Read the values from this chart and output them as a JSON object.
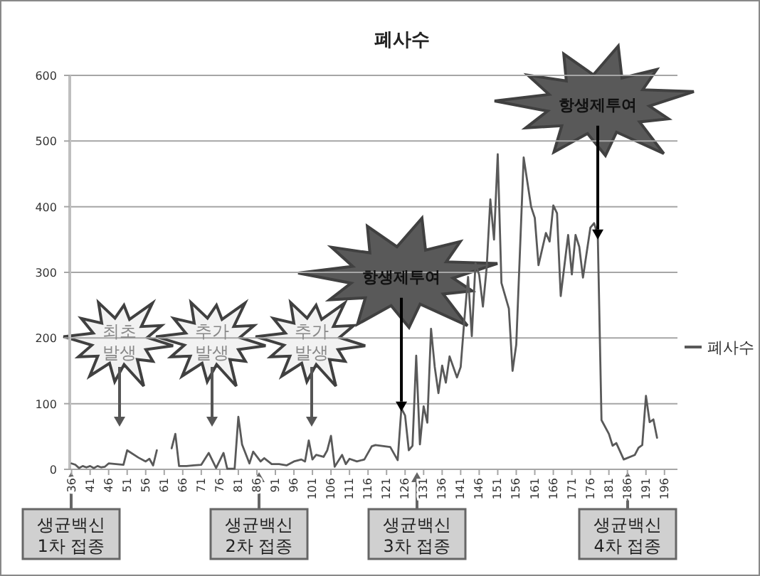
{
  "chart_data": {
    "type": "line",
    "title": "폐사수",
    "x": [
      36,
      37,
      38,
      39,
      40,
      41,
      42,
      43,
      44,
      45,
      46,
      48,
      50,
      51,
      54,
      56,
      57,
      58,
      59,
      61,
      63,
      64,
      65,
      67,
      69,
      71,
      73,
      75,
      77,
      78,
      80,
      81,
      82,
      84,
      85,
      87,
      88,
      90,
      92,
      94,
      96,
      98,
      99,
      100,
      101,
      102,
      104,
      105,
      106,
      107,
      109,
      110,
      111,
      113,
      115,
      117,
      118,
      122,
      124,
      125,
      126,
      127,
      128,
      129,
      130,
      131,
      132,
      133,
      134,
      135,
      136,
      137,
      138,
      140,
      141,
      142,
      143,
      144,
      145,
      146,
      147,
      148,
      149,
      150,
      151,
      152,
      154,
      155,
      156,
      158,
      160,
      161,
      162,
      164,
      165,
      166,
      167,
      168,
      170,
      171,
      172,
      173,
      174,
      176,
      177,
      178,
      179,
      181,
      182,
      183,
      185,
      188,
      189,
      190,
      191,
      192,
      193,
      194
    ],
    "series": [
      {
        "name": "폐사수",
        "color": "#595959",
        "values": [
          9,
          7,
          2,
          5,
          3,
          5,
          2,
          5,
          3,
          4,
          9,
          8,
          7,
          29,
          18,
          12,
          16,
          6,
          29,
          null,
          32,
          54,
          5,
          5,
          6,
          7,
          25,
          2,
          25,
          1,
          1,
          80,
          38,
          9,
          27,
          12,
          17,
          8,
          8,
          6,
          12,
          15,
          12,
          44,
          15,
          22,
          19,
          29,
          51,
          4,
          22,
          8,
          16,
          12,
          15,
          35,
          37,
          34,
          14,
          93,
          82,
          29,
          36,
          173,
          38,
          96,
          71,
          214,
          156,
          116,
          158,
          132,
          172,
          140,
          156,
          228,
          293,
          203,
          314,
          296,
          248,
          306,
          411,
          350,
          480,
          284,
          245,
          150,
          190,
          475,
          400,
          383,
          311,
          360,
          347,
          402,
          390,
          264,
          357,
          297,
          357,
          339,
          292,
          368,
          375,
          357,
          75,
          54,
          36,
          40,
          15,
          22,
          33,
          37,
          112,
          72,
          76,
          48
        ]
      }
    ],
    "xlim": [
      35.5,
      199.5
    ],
    "xticks": [
      36,
      41,
      46,
      51,
      56,
      61,
      66,
      71,
      76,
      81,
      86,
      91,
      96,
      101,
      106,
      111,
      116,
      121,
      126,
      131,
      136,
      141,
      146,
      151,
      156,
      161,
      166,
      171,
      176,
      181,
      186,
      191,
      196
    ],
    "ylim": [
      0,
      600
    ],
    "yticks": [
      0,
      100,
      200,
      300,
      400,
      500,
      600
    ],
    "grid": "y",
    "legend": "right",
    "marker": "none",
    "line_style": "solid",
    "annotations": [
      "최초 발생",
      "추가 발생",
      "추가 발생",
      {
        "text": "항생제투여",
        "x": 125,
        "y": 88
      },
      {
        "text": "항생제투여",
        "x": 178,
        "y": 350
      },
      "생균백신 1차 접종",
      "생균백신 2차 접종",
      "생균백신 3차 접종",
      "생균백신 4차 접종"
    ]
  }
}
